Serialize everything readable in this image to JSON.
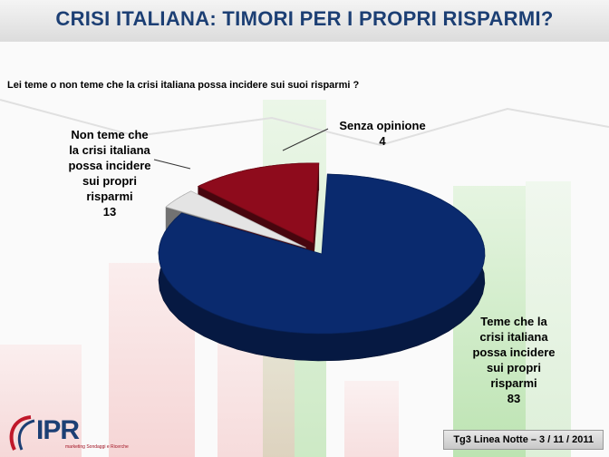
{
  "title": "CRISI ITALIANA: TIMORI PER I PROPRI RISPARMI?",
  "question": "Lei teme o non teme che la crisi italiana possa incidere sui suoi risparmi ?",
  "source": "Tg3 Linea Notte – 3 / 11 / 2011",
  "logo": {
    "text": "IPR",
    "sub": "marketing",
    "sub2": "Sondaggi e Ricerche"
  },
  "chart_data": {
    "type": "pie",
    "categories": [
      "Teme che la crisi italiana possa incidere sui propri risparmi",
      "Senza opinione",
      "Non teme che la crisi italiana possa incidere sui propri risparmi"
    ],
    "values": [
      83,
      4,
      13
    ],
    "colors": [
      "#0a2a6e",
      "#e4e4e4",
      "#8e0b1c"
    ],
    "labels": {
      "teme": [
        "Teme che la",
        "crisi italiana",
        "possa incidere",
        "sui propri",
        "risparmi",
        "83"
      ],
      "senza": [
        "Senza opinione",
        "4"
      ],
      "non_teme": [
        "Non teme che",
        "la crisi italiana",
        "possa incidere",
        "sui propri",
        "risparmi",
        "13"
      ]
    }
  }
}
